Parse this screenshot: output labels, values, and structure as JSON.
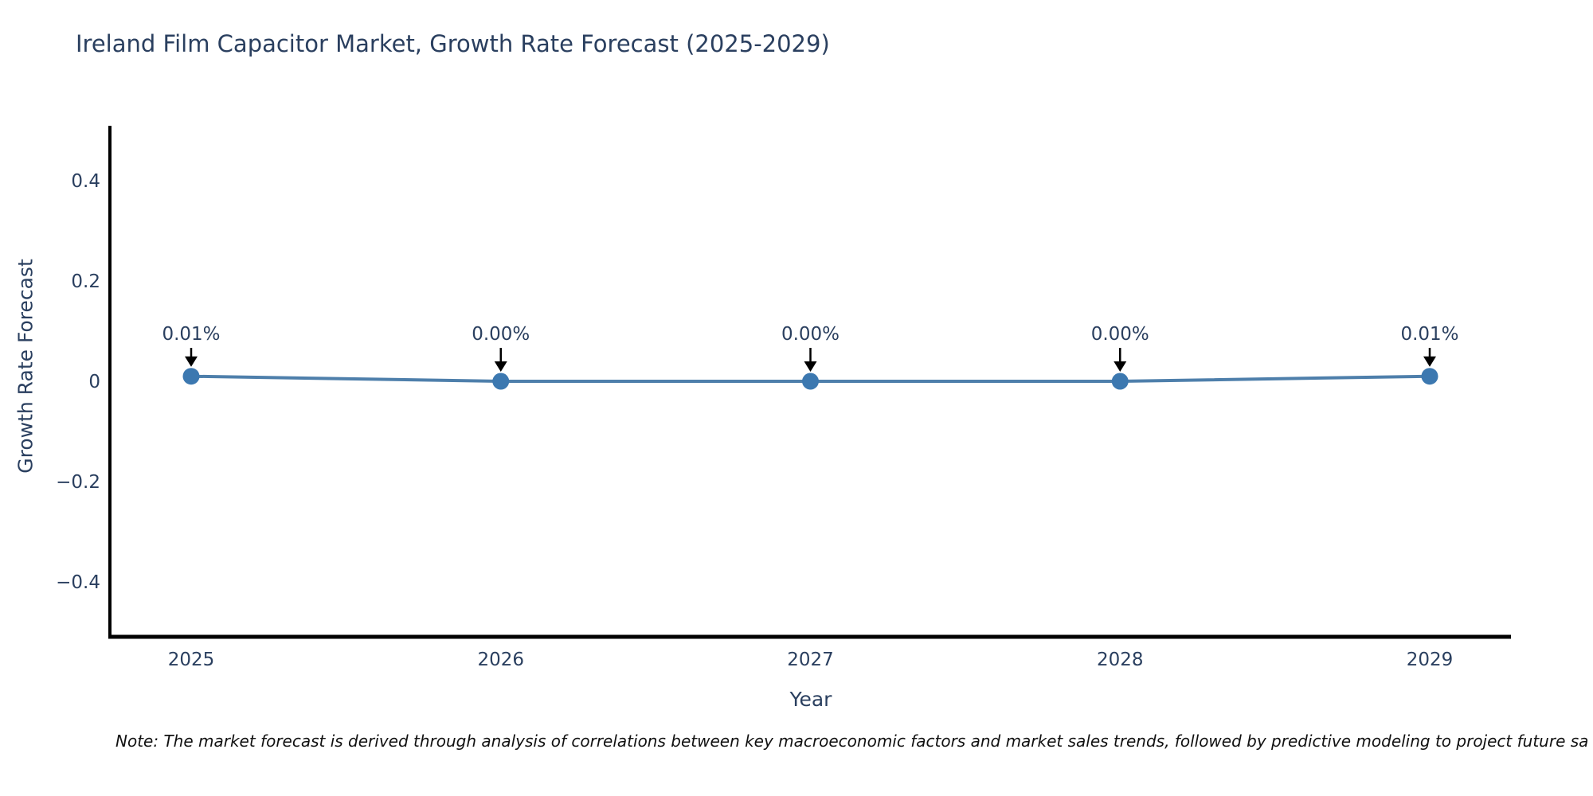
{
  "note": "Note: The market forecast is derived through analysis of correlations between key macroeconomic factors and market sales trends, followed by predictive modeling to project future sa",
  "chart_data": {
    "type": "line",
    "title": "Ireland Film Capacitor Market, Growth Rate Forecast (2025-2029)",
    "xlabel": "Year",
    "ylabel": "Growth Rate Forecast",
    "x": [
      "2025",
      "2026",
      "2027",
      "2028",
      "2029"
    ],
    "values": [
      0.01,
      0.0,
      0.0,
      0.0,
      0.01
    ],
    "point_labels": [
      "0.01%",
      "0.00%",
      "0.00%",
      "0.00%",
      "0.01%"
    ],
    "yticks": [
      0.4,
      0.2,
      0,
      -0.2,
      -0.4
    ],
    "ytick_labels": [
      "0.4",
      "0.2",
      "0",
      "−0.2",
      "−0.4"
    ],
    "ylim": [
      -0.51,
      0.51
    ],
    "grid": false,
    "legend": "none",
    "annotation_style": "value label with downward black arrow to each marker",
    "colors": {
      "line": "#4e7fab",
      "marker": "#3c78b0",
      "arrow": "#000000",
      "axis": "#000000",
      "text": "#2a3f5f",
      "note_text": "#111111",
      "background": "#ffffff"
    }
  }
}
